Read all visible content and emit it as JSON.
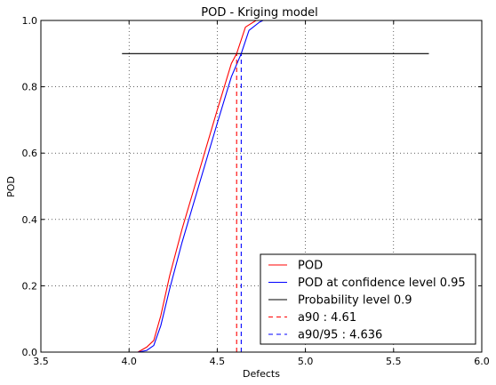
{
  "chart_data": {
    "type": "line",
    "title": "POD - Kriging model",
    "xlabel": "Defects",
    "ylabel": "POD",
    "xlim": [
      3.5,
      6.0
    ],
    "ylim": [
      0.0,
      1.0
    ],
    "xticks": [
      "3.5",
      "4.0",
      "4.5",
      "5.0",
      "5.5",
      "6.0"
    ],
    "yticks": [
      "0.0",
      "0.2",
      "0.4",
      "0.6",
      "0.8",
      "1.0"
    ],
    "grid": true,
    "legend_position": "bottom-right",
    "series": [
      {
        "name": "POD",
        "color": "#ff0000",
        "style": "solid",
        "x": [
          3.96,
          4.05,
          4.1,
          4.14,
          4.18,
          4.23,
          4.3,
          4.4,
          4.5,
          4.58,
          4.61,
          4.66,
          4.72,
          4.76
        ],
        "y": [
          0.0,
          0.0,
          0.015,
          0.035,
          0.11,
          0.23,
          0.37,
          0.55,
          0.73,
          0.87,
          0.9,
          0.98,
          1.0,
          1.0
        ]
      },
      {
        "name": "POD at confidence level 0.95",
        "color": "#0000ff",
        "style": "solid",
        "x": [
          3.96,
          4.05,
          4.1,
          4.14,
          4.18,
          4.23,
          4.3,
          4.4,
          4.5,
          4.58,
          4.636,
          4.68,
          4.74,
          4.76
        ],
        "y": [
          0.0,
          0.0,
          0.005,
          0.02,
          0.08,
          0.19,
          0.33,
          0.51,
          0.69,
          0.83,
          0.9,
          0.97,
          0.995,
          1.0
        ]
      },
      {
        "name": "Probability level 0.9",
        "color": "#000000",
        "style": "solid",
        "x": [
          3.96,
          5.7
        ],
        "y": [
          0.9,
          0.9
        ]
      },
      {
        "name": "a90 : 4.61",
        "color": "#ff0000",
        "style": "dashed",
        "x": [
          4.61,
          4.61
        ],
        "y": [
          0.0,
          0.9
        ]
      },
      {
        "name": "a90/95 : 4.636",
        "color": "#0000ff",
        "style": "dashed",
        "x": [
          4.636,
          4.636
        ],
        "y": [
          0.0,
          0.9
        ]
      }
    ]
  }
}
